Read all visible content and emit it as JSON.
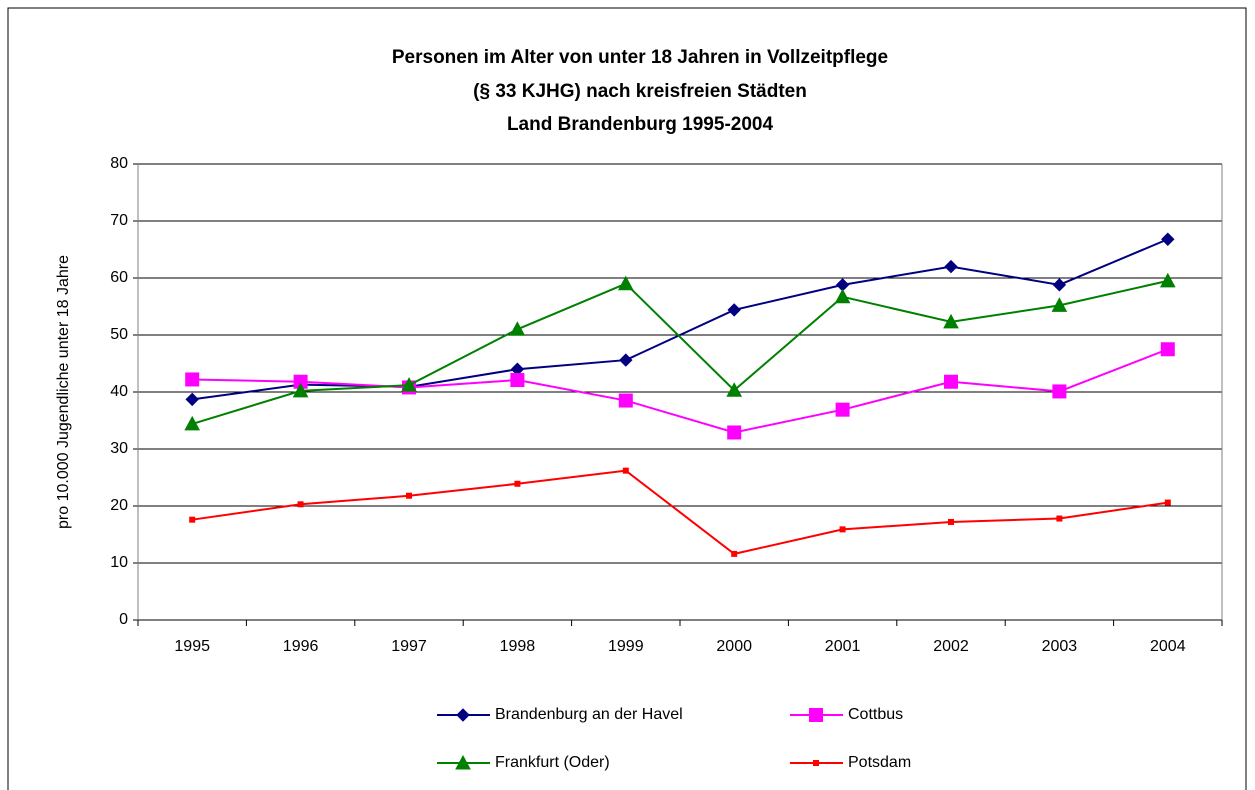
{
  "chart_data": {
    "type": "line",
    "title": [
      "Personen im Alter von unter 18 Jahren in Vollzeitpflege",
      "(§ 33 KJHG)  nach kreisfreien Städten",
      "Land Brandenburg 1995-2004"
    ],
    "ylabel": "pro 10.000 Jugendliche unter 18 Jahre",
    "categories": [
      "1995",
      "1996",
      "1997",
      "1998",
      "1999",
      "2000",
      "2001",
      "2002",
      "2003",
      "2004"
    ],
    "series": [
      {
        "name": "Brandenburg an der Havel",
        "color": "#000080",
        "marker": "diamond",
        "values": [
          38.7,
          41.3,
          40.9,
          44.0,
          45.6,
          54.4,
          58.8,
          62.0,
          58.8,
          66.8
        ]
      },
      {
        "name": "Cottbus",
        "color": "#ff00ff",
        "marker": "square",
        "values": [
          42.2,
          41.8,
          40.8,
          42.1,
          38.5,
          32.9,
          36.9,
          41.8,
          40.1,
          47.5
        ]
      },
      {
        "name": "Frankfurt (Oder)",
        "color": "#008000",
        "marker": "triangle",
        "values": [
          34.4,
          40.2,
          41.2,
          51.0,
          59.0,
          40.3,
          56.7,
          52.3,
          55.2,
          59.5
        ]
      },
      {
        "name": "Potsdam",
        "color": "#ff0000",
        "marker": "small-square",
        "values": [
          17.6,
          20.3,
          21.8,
          23.9,
          26.2,
          11.6,
          15.9,
          17.2,
          17.8,
          20.6
        ]
      }
    ],
    "ylim": [
      0,
      80
    ],
    "yticks": [
      0,
      10,
      20,
      30,
      40,
      50,
      60,
      70,
      80
    ],
    "grid": true,
    "legend": "bottom"
  }
}
